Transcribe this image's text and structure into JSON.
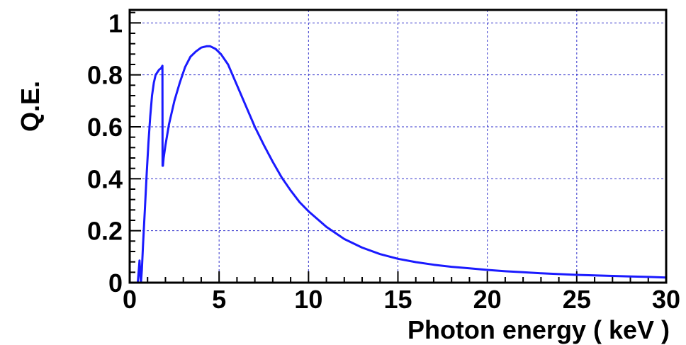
{
  "chart_data": {
    "type": "line",
    "xlabel": "Photon energy ( keV )",
    "ylabel": "Q.E.",
    "xlim": [
      0,
      30
    ],
    "ylim": [
      0,
      1.05
    ],
    "x_ticks": [
      0,
      5,
      10,
      15,
      20,
      25,
      30
    ],
    "y_ticks": [
      0,
      0.2,
      0.4,
      0.6,
      0.8,
      1
    ],
    "x_tick_labels": [
      "0",
      "5",
      "10",
      "15",
      "20",
      "25",
      "30"
    ],
    "y_tick_labels": [
      "0",
      "0.2",
      "0.4",
      "0.6",
      "0.8",
      "1"
    ],
    "grid": true,
    "colors": {
      "series": "#1a1aff",
      "grid": "#3333cc",
      "frame": "#000000"
    },
    "series": [
      {
        "x": [
          0.45,
          0.5,
          0.55,
          0.6,
          0.63,
          0.68,
          0.75,
          0.85,
          0.95,
          1.05,
          1.15,
          1.25,
          1.35,
          1.45,
          1.55,
          1.65,
          1.75,
          1.83,
          1.84,
          1.86,
          1.9,
          2.0,
          2.2,
          2.5,
          2.8,
          3.1,
          3.4,
          3.7,
          4.0,
          4.3,
          4.5,
          4.8,
          5.1,
          5.5,
          6.0,
          6.5,
          7.0,
          7.5,
          8.0,
          8.5,
          9.0,
          9.5,
          10.0,
          11.0,
          12.0,
          13.0,
          14.0,
          15.0,
          16.0,
          17.0,
          18.0,
          19.0,
          20.0,
          21.0,
          22.0,
          23.0,
          24.0,
          25.0,
          26.0,
          27.0,
          28.0,
          29.0,
          30.0
        ],
        "y": [
          0.0,
          0.04,
          0.085,
          0.03,
          0.0,
          0.05,
          0.15,
          0.28,
          0.42,
          0.54,
          0.64,
          0.72,
          0.77,
          0.8,
          0.81,
          0.82,
          0.825,
          0.835,
          0.45,
          0.45,
          0.48,
          0.53,
          0.61,
          0.7,
          0.77,
          0.83,
          0.87,
          0.89,
          0.905,
          0.91,
          0.91,
          0.9,
          0.88,
          0.84,
          0.76,
          0.68,
          0.6,
          0.53,
          0.465,
          0.405,
          0.355,
          0.31,
          0.275,
          0.215,
          0.168,
          0.135,
          0.11,
          0.092,
          0.079,
          0.069,
          0.061,
          0.055,
          0.049,
          0.044,
          0.04,
          0.036,
          0.033,
          0.03,
          0.028,
          0.026,
          0.024,
          0.022,
          0.02
        ]
      }
    ]
  }
}
